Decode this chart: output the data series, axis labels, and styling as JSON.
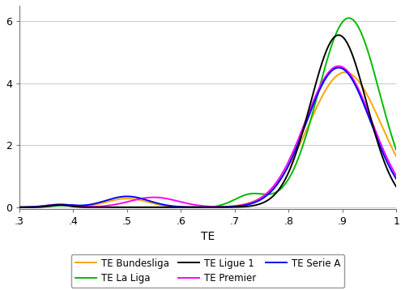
{
  "title": "",
  "xlabel": "TE",
  "ylabel": "",
  "xlim": [
    0.3,
    1.0
  ],
  "ylim": [
    -0.05,
    6.5
  ],
  "xticks": [
    0.3,
    0.4,
    0.5,
    0.6,
    0.7,
    0.8,
    0.9,
    1.0
  ],
  "yticks": [
    0,
    2,
    4,
    6
  ],
  "background_color": "#ffffff",
  "grid_color": "#cccccc",
  "series": {
    "Bundesliga": {
      "color": "#FFA500",
      "label": "TE Bundesliga"
    },
    "LaLiga": {
      "color": "#00BB00",
      "label": "TE La Liga"
    },
    "Ligue1": {
      "color": "#000000",
      "label": "TE Ligue 1"
    },
    "Premier": {
      "color": "#FF00FF",
      "label": "TE Premier"
    },
    "SerieA": {
      "color": "#0000FF",
      "label": "TE Serie A"
    }
  },
  "legend_ncol": 3
}
